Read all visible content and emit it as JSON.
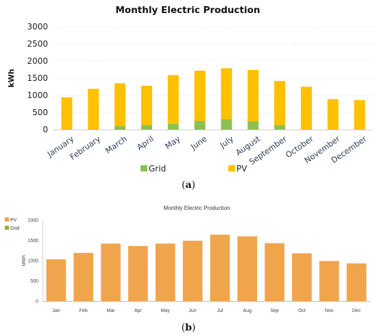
{
  "chart_data": [
    {
      "type": "bar",
      "stacked": true,
      "title": "Monthly Electric Production",
      "ylabel": "kWh",
      "xlabel": "",
      "ylim": [
        0,
        3000
      ],
      "yticks": [
        0,
        500,
        1000,
        1500,
        2000,
        2500,
        3000
      ],
      "grid": true,
      "legend": "bottom",
      "sublabel_pre": "(",
      "sublabel_letter": "a",
      "sublabel_post": ")",
      "categories": [
        "January",
        "February",
        "March",
        "April",
        "May",
        "June",
        "July",
        "August",
        "September",
        "October",
        "November",
        "December"
      ],
      "series": [
        {
          "name": "Grid",
          "color": "#8cc152",
          "values": [
            0,
            0,
            100,
            130,
            160,
            250,
            300,
            240,
            130,
            0,
            0,
            0
          ]
        },
        {
          "name": "PV",
          "color": "#ffc000",
          "values": [
            940,
            1190,
            1250,
            1150,
            1430,
            1470,
            1490,
            1500,
            1290,
            1250,
            890,
            860
          ]
        }
      ]
    },
    {
      "type": "bar",
      "title": "Monthly Electric Production",
      "ylabel": "MWh",
      "xlabel": "",
      "ylim": [
        0,
        2000
      ],
      "yticks": [
        0,
        500,
        1000,
        1500,
        2000
      ],
      "grid": false,
      "legend": "top-left",
      "sublabel_pre": "(",
      "sublabel_letter": "b",
      "sublabel_post": ")",
      "categories": [
        "Jan",
        "Feb",
        "Mar",
        "Apr",
        "May",
        "Jun",
        "Jul",
        "Aug",
        "Sep",
        "Oct",
        "Nov",
        "Dec"
      ],
      "series": [
        {
          "name": "PV",
          "color": "#f0a44c",
          "values": [
            1030,
            1190,
            1420,
            1360,
            1420,
            1490,
            1640,
            1600,
            1430,
            1180,
            990,
            930
          ]
        },
        {
          "name": "Grid",
          "color": "#8cb43c",
          "values": [
            0,
            0,
            0,
            0,
            0,
            0,
            0,
            0,
            0,
            0,
            0,
            0
          ]
        }
      ]
    }
  ]
}
